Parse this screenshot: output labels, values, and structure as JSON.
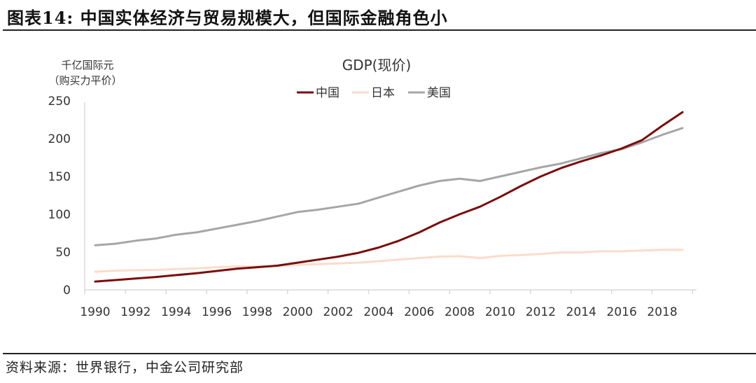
{
  "figure": {
    "title": "图表14: 中国实体经济与贸易规模大，但国际金融角色小",
    "source": "资料来源：世界银行，中金公司研究部"
  },
  "chart_data": {
    "type": "line",
    "title": "GDP(现价)",
    "ylabel_line1": "千亿国际元",
    "ylabel_line2": "（购买力平价）",
    "xlabel": "",
    "ylim": [
      0,
      250
    ],
    "xlim": [
      1990,
      2019
    ],
    "yticks": [
      0,
      50,
      100,
      150,
      200,
      250
    ],
    "xticks": [
      1990,
      1992,
      1994,
      1996,
      1998,
      2000,
      2002,
      2004,
      2006,
      2008,
      2010,
      2012,
      2014,
      2016,
      2018
    ],
    "grid": false,
    "legend_position": "top-center",
    "x": [
      1990,
      1991,
      1992,
      1993,
      1994,
      1995,
      1996,
      1997,
      1998,
      1999,
      2000,
      2001,
      2002,
      2003,
      2004,
      2005,
      2006,
      2007,
      2008,
      2009,
      2010,
      2011,
      2012,
      2013,
      2014,
      2015,
      2016,
      2017,
      2018,
      2019
    ],
    "series": [
      {
        "name": "中国",
        "color": "#7a0c0c",
        "values": [
          11,
          13,
          15,
          17,
          19.5,
          22,
          25,
          28,
          30,
          32,
          36,
          40,
          44,
          49,
          56,
          65,
          76,
          89,
          100,
          110,
          123,
          137,
          150,
          161,
          170,
          178,
          187,
          198,
          217,
          235
        ]
      },
      {
        "name": "日本",
        "color": "#fbdccb",
        "values": [
          24,
          25.5,
          26,
          26.5,
          27.5,
          28.5,
          30,
          31,
          31,
          31.5,
          33,
          34,
          35,
          36,
          38,
          40,
          42,
          44,
          44.5,
          42,
          45,
          46,
          47.5,
          49.5,
          49.5,
          51,
          51,
          52,
          53,
          53
        ]
      },
      {
        "name": "美国",
        "color": "#a6a6a6",
        "values": [
          59,
          61,
          65,
          68,
          73,
          76,
          81,
          86,
          91,
          97,
          103,
          106,
          110,
          114,
          122,
          130,
          138,
          144,
          147,
          144,
          150,
          156,
          162,
          167,
          174,
          181,
          186,
          195,
          205,
          214
        ]
      }
    ]
  }
}
